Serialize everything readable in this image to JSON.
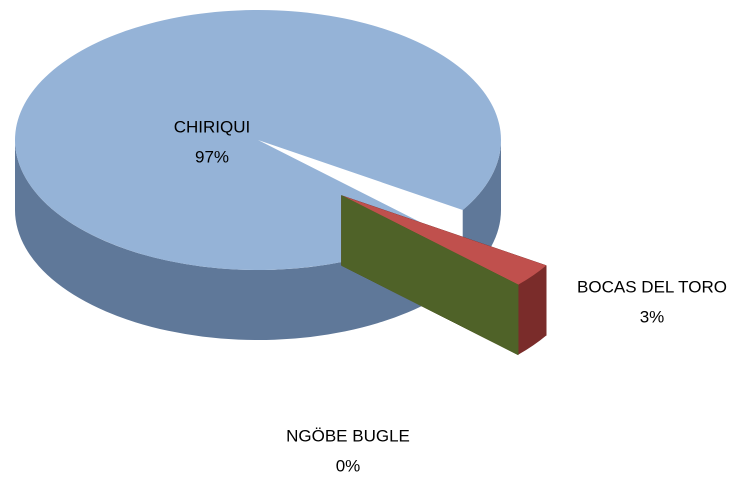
{
  "chart_data": {
    "type": "pie",
    "categories": [
      "CHIRIQUI",
      "BOCAS DEL TORO",
      "NGÖBE BUGLE"
    ],
    "values": [
      97,
      3,
      0
    ],
    "value_labels": [
      "97%",
      "3%",
      "0%"
    ],
    "colors": [
      "#95b3d7",
      "#c0504d",
      "#9bbb59"
    ],
    "side_colors": [
      "#5f7899",
      "#7a2c2a",
      "#4f6228"
    ]
  }
}
